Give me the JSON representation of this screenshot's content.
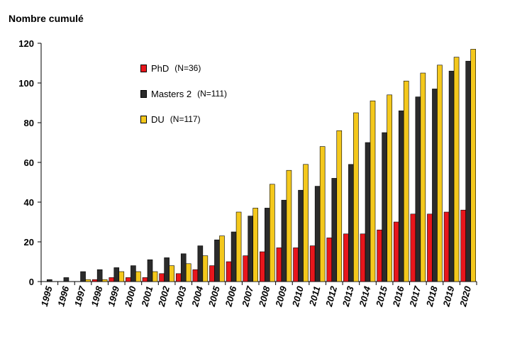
{
  "chart_data": {
    "type": "bar",
    "ylabel": "Nombre cumulé",
    "xlabel": "",
    "ylim": [
      0,
      120
    ],
    "yticks": [
      0,
      20,
      40,
      60,
      80,
      100,
      120
    ],
    "grid": false,
    "legend_position": "top-left",
    "categories": [
      "1995",
      "1996",
      "1997",
      "1998",
      "1999",
      "2000",
      "2001",
      "2002",
      "2003",
      "2004",
      "2005",
      "2006",
      "2007",
      "2008",
      "2009",
      "2010",
      "2011",
      "2012",
      "2013",
      "2014",
      "2015",
      "2016",
      "2017",
      "2018",
      "2019",
      "2020"
    ],
    "series": [
      {
        "name": "PhD",
        "count_label": "(N=36)",
        "color": "#e8161c",
        "values": [
          0,
          0,
          0,
          1,
          2,
          2,
          2,
          4,
          4,
          6,
          8,
          10,
          13,
          15,
          17,
          17,
          18,
          22,
          24,
          24,
          26,
          30,
          34,
          34,
          35,
          36
        ]
      },
      {
        "name": "Masters 2",
        "count_label": "(N=111)",
        "color": "#2b2b2b",
        "values": [
          1,
          2,
          5,
          6,
          7,
          8,
          11,
          12,
          14,
          18,
          21,
          25,
          33,
          37,
          41,
          46,
          48,
          52,
          59,
          70,
          75,
          86,
          93,
          97,
          106,
          111
        ]
      },
      {
        "name": "DU",
        "count_label": "(N=117)",
        "color": "#f4c81c",
        "values": [
          0,
          0,
          1,
          1,
          5,
          5,
          5,
          8,
          9,
          13,
          23,
          35,
          37,
          49,
          56,
          59,
          68,
          76,
          85,
          91,
          94,
          101,
          105,
          109,
          113,
          117
        ]
      }
    ]
  }
}
